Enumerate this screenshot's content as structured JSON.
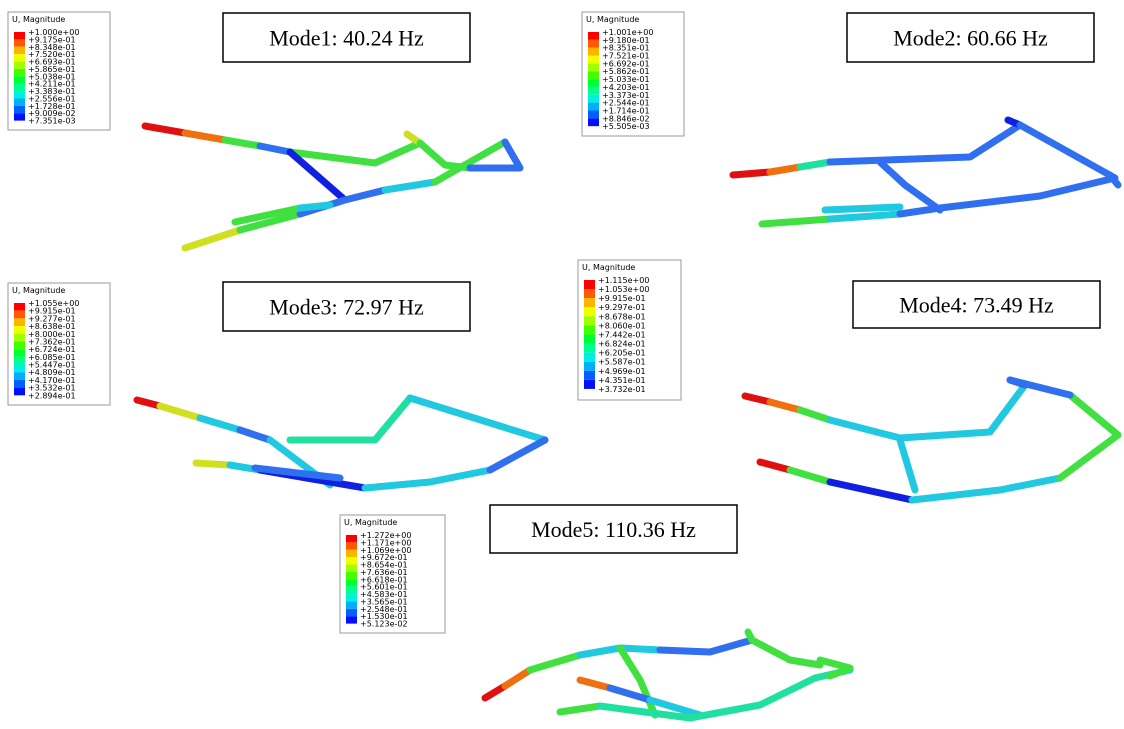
{
  "modes": [
    {
      "label": "Mode1: 40.24 Hz",
      "legend": {
        "title": "U, Magnitude",
        "values": [
          "+1.000e+00",
          "+9.175e-01",
          "+8.348e-01",
          "+7.520e-01",
          "+6.693e-01",
          "+5.865e-01",
          "+5.038e-01",
          "+4.211e-01",
          "+3.383e-01",
          "+2.556e-01",
          "+1.728e-01",
          "+9.009e-02",
          "+7.351e-03"
        ]
      }
    },
    {
      "label": "Mode2: 60.66 Hz",
      "legend": {
        "title": "U, Magnitude",
        "values": [
          "+1.001e+00",
          "+9.180e-01",
          "+8.351e-01",
          "+7.521e-01",
          "+6.692e-01",
          "+5.862e-01",
          "+5.033e-01",
          "+4.203e-01",
          "+3.373e-01",
          "+2.544e-01",
          "+1.714e-01",
          "+8.846e-02",
          "+5.505e-03"
        ]
      }
    },
    {
      "label": "Mode3: 72.97 Hz",
      "legend": {
        "title": "U, Magnitude",
        "values": [
          "+1.055e+00",
          "+9.915e-01",
          "+9.277e-01",
          "+8.638e-01",
          "+8.000e-01",
          "+7.362e-01",
          "+6.724e-01",
          "+6.085e-01",
          "+5.447e-01",
          "+4.809e-01",
          "+4.170e-01",
          "+3.532e-01",
          "+2.894e-01"
        ]
      }
    },
    {
      "label": "Mode4: 73.49 Hz",
      "legend": {
        "title": "U, Magnitude",
        "values": [
          "+1.115e+00",
          "+1.053e+00",
          "+9.915e-01",
          "+9.297e-01",
          "+8.678e-01",
          "+8.060e-01",
          "+7.442e-01",
          "+6.824e-01",
          "+6.205e-01",
          "+5.587e-01",
          "+4.969e-01",
          "+4.351e-01",
          "+3.732e-01"
        ]
      }
    },
    {
      "label": "Mode5: 110.36 Hz",
      "legend": {
        "title": "U, Magnitude",
        "values": [
          "+1.272e+00",
          "+1.171e+00",
          "+1.069e+00",
          "+9.672e-01",
          "+8.654e-01",
          "+7.636e-01",
          "+6.618e-01",
          "+5.601e-01",
          "+4.583e-01",
          "+3.565e-01",
          "+2.548e-01",
          "+1.530e-01",
          "+5.123e-02"
        ]
      }
    }
  ]
}
